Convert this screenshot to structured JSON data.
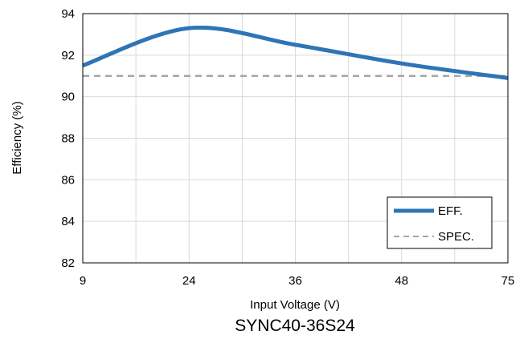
{
  "chart_data": {
    "type": "line",
    "title": "",
    "caption": "SYNC40-36S24",
    "xlabel": "Input Voltage (V)",
    "ylabel": "Efficiency (%)",
    "x_ticks": [
      "9",
      "24",
      "36",
      "48",
      "75"
    ],
    "y_ticks": [
      "94",
      "92",
      "90",
      "88",
      "86",
      "84",
      "82"
    ],
    "ylim": [
      82,
      94
    ],
    "grid": true,
    "legend_position": "bottom-right",
    "series": [
      {
        "name": "EFF.",
        "color": "#2E75B6",
        "style": "solid",
        "x": [
          "9",
          "24",
          "36",
          "48",
          "75"
        ],
        "y": [
          91.5,
          93.3,
          92.5,
          91.6,
          90.9
        ]
      },
      {
        "name": "SPEC.",
        "color": "#A6A6A6",
        "style": "dashed",
        "x": [
          "9",
          "24",
          "36",
          "48",
          "75"
        ],
        "y": [
          91.0,
          91.0,
          91.0,
          91.0,
          91.0
        ]
      }
    ]
  }
}
